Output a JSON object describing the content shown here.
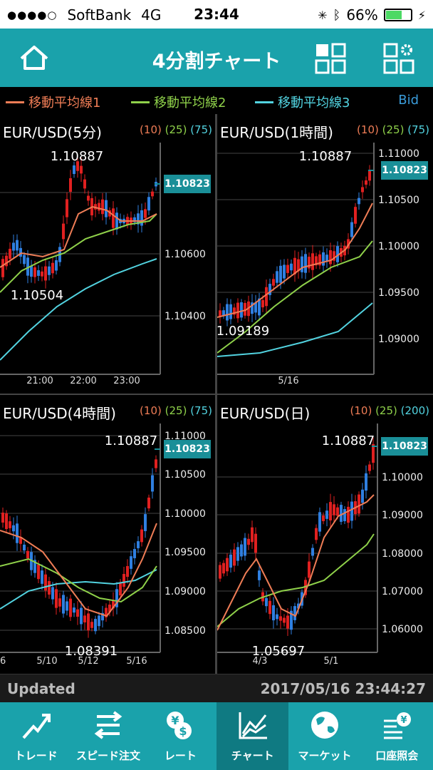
{
  "status": {
    "carrier": "SoftBank",
    "network": "4G",
    "time": "23:44",
    "battery": "66%",
    "battery_level": 0.66
  },
  "nav": {
    "title": "4分割チャート"
  },
  "legend": {
    "items": [
      {
        "label": "移動平均線1",
        "color": "#ef7d56"
      },
      {
        "label": "移動平均線2",
        "color": "#8fd14a"
      },
      {
        "label": "移動平均線3",
        "color": "#52d3e0"
      }
    ],
    "price_side": "Bid"
  },
  "panels": [
    {
      "title": "EUR/USD(5分)",
      "ma1": "(10)",
      "ma2": "(25)",
      "ma3": "(75)",
      "high": "1.10887",
      "low": "1.10504",
      "current": "1.10823",
      "y_ticks": [
        "1.10600",
        "1.10400"
      ],
      "x_ticks": [
        "21:00",
        "22:00",
        "23:00"
      ]
    },
    {
      "title": "EUR/USD(1時間)",
      "ma1": "(10)",
      "ma2": "(25)",
      "ma3": "(75)",
      "high": "1.10887",
      "low": "1.09189",
      "current": "1.10823",
      "y_ticks": [
        "1.11000",
        "1.10500",
        "1.10000",
        "1.09500",
        "1.09000"
      ],
      "x_ticks": [
        "5/16"
      ]
    },
    {
      "title": "EUR/USD(4時間)",
      "ma1": "(10)",
      "ma2": "(25)",
      "ma3": "(75)",
      "high": "1.10887",
      "low": "1.08391",
      "current": "1.10823",
      "y_ticks": [
        "1.11000",
        "1.10500",
        "1.10000",
        "1.09500",
        "1.09000",
        "1.08500"
      ],
      "x_ticks": [
        "/6",
        "5/10",
        "5/12",
        "5/16"
      ]
    },
    {
      "title": "EUR/USD(日)",
      "ma1": "(10)",
      "ma2": "(25)",
      "ma3": "(200)",
      "high": "1.10887",
      "low": "1.05697",
      "current": "1.10823",
      "y_ticks": [
        "1.10000",
        "1.09000",
        "1.08000",
        "1.07000",
        "1.06000"
      ],
      "x_ticks": [
        "4/3",
        "5/1"
      ]
    }
  ],
  "updated": {
    "label": "Updated",
    "timestamp": "2017/05/16 23:44:27"
  },
  "tabs": [
    {
      "label": "トレード",
      "icon": "trade-icon"
    },
    {
      "label": "スピード注文",
      "icon": "speed-order-icon"
    },
    {
      "label": "レート",
      "icon": "rate-icon"
    },
    {
      "label": "チャート",
      "icon": "chart-icon",
      "active": true
    },
    {
      "label": "マーケット",
      "icon": "globe-icon"
    },
    {
      "label": "口座照会",
      "icon": "account-icon"
    }
  ]
}
